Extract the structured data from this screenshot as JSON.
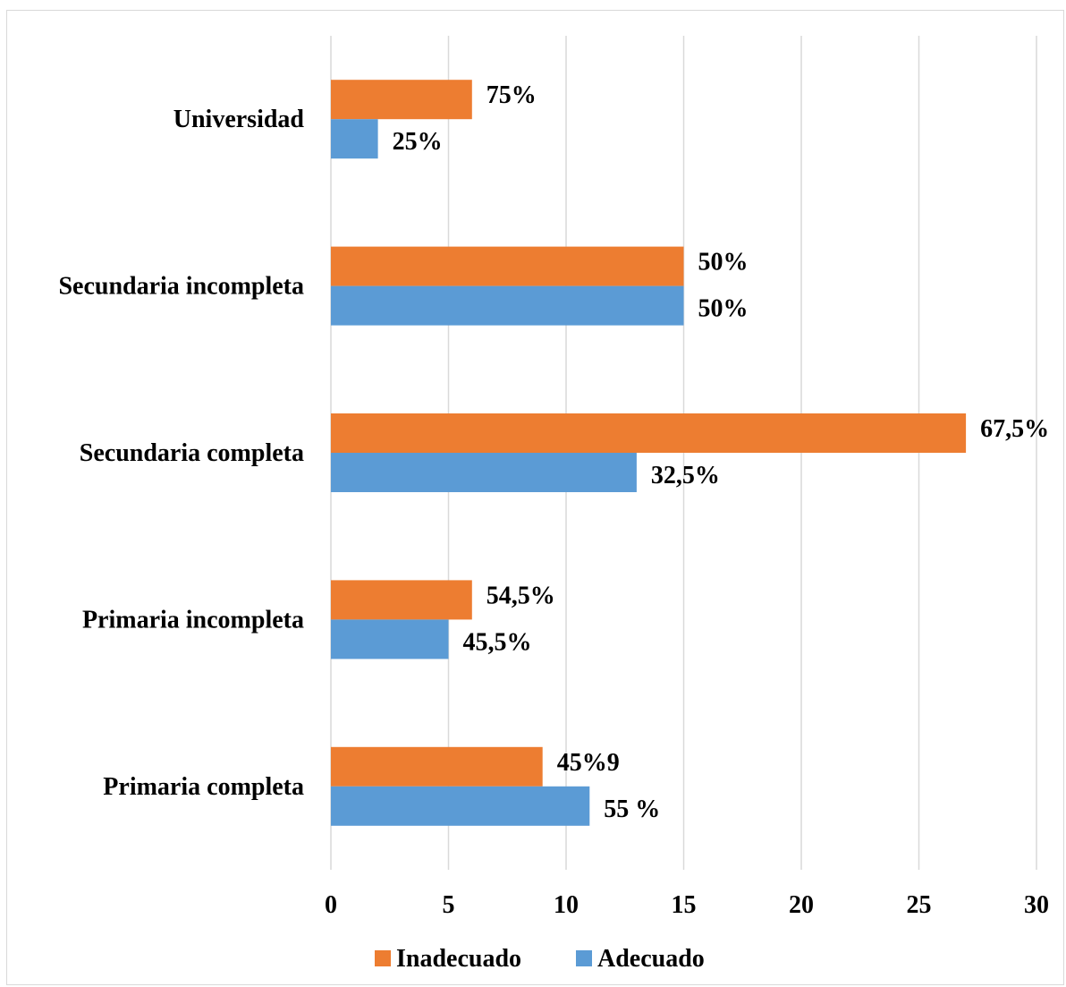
{
  "chart_data": {
    "type": "bar",
    "orientation": "horizontal",
    "categories": [
      "Primaria completa",
      "Primaria incompleta",
      "Secundaria completa",
      "Secundaria incompleta",
      "Universidad"
    ],
    "series": [
      {
        "name": "Inadecuado",
        "color": "#ED7D31",
        "values": [
          9,
          6,
          27,
          15,
          6
        ],
        "labels": [
          "45%9",
          "54,5%",
          "67,5%",
          "50%",
          "75%"
        ]
      },
      {
        "name": "Adecuado",
        "color": "#5B9BD5",
        "values": [
          11,
          5,
          13,
          15,
          2
        ],
        "labels": [
          "55 %",
          "45,5%",
          "32,5%",
          "50%",
          "25%"
        ]
      }
    ],
    "xlim": [
      0,
      30
    ],
    "xticks": [
      "0",
      "5",
      "10",
      "15",
      "20",
      "25",
      "30"
    ],
    "grid": true,
    "legend_position": "bottom",
    "gridline_color": "#d9d9d9"
  }
}
